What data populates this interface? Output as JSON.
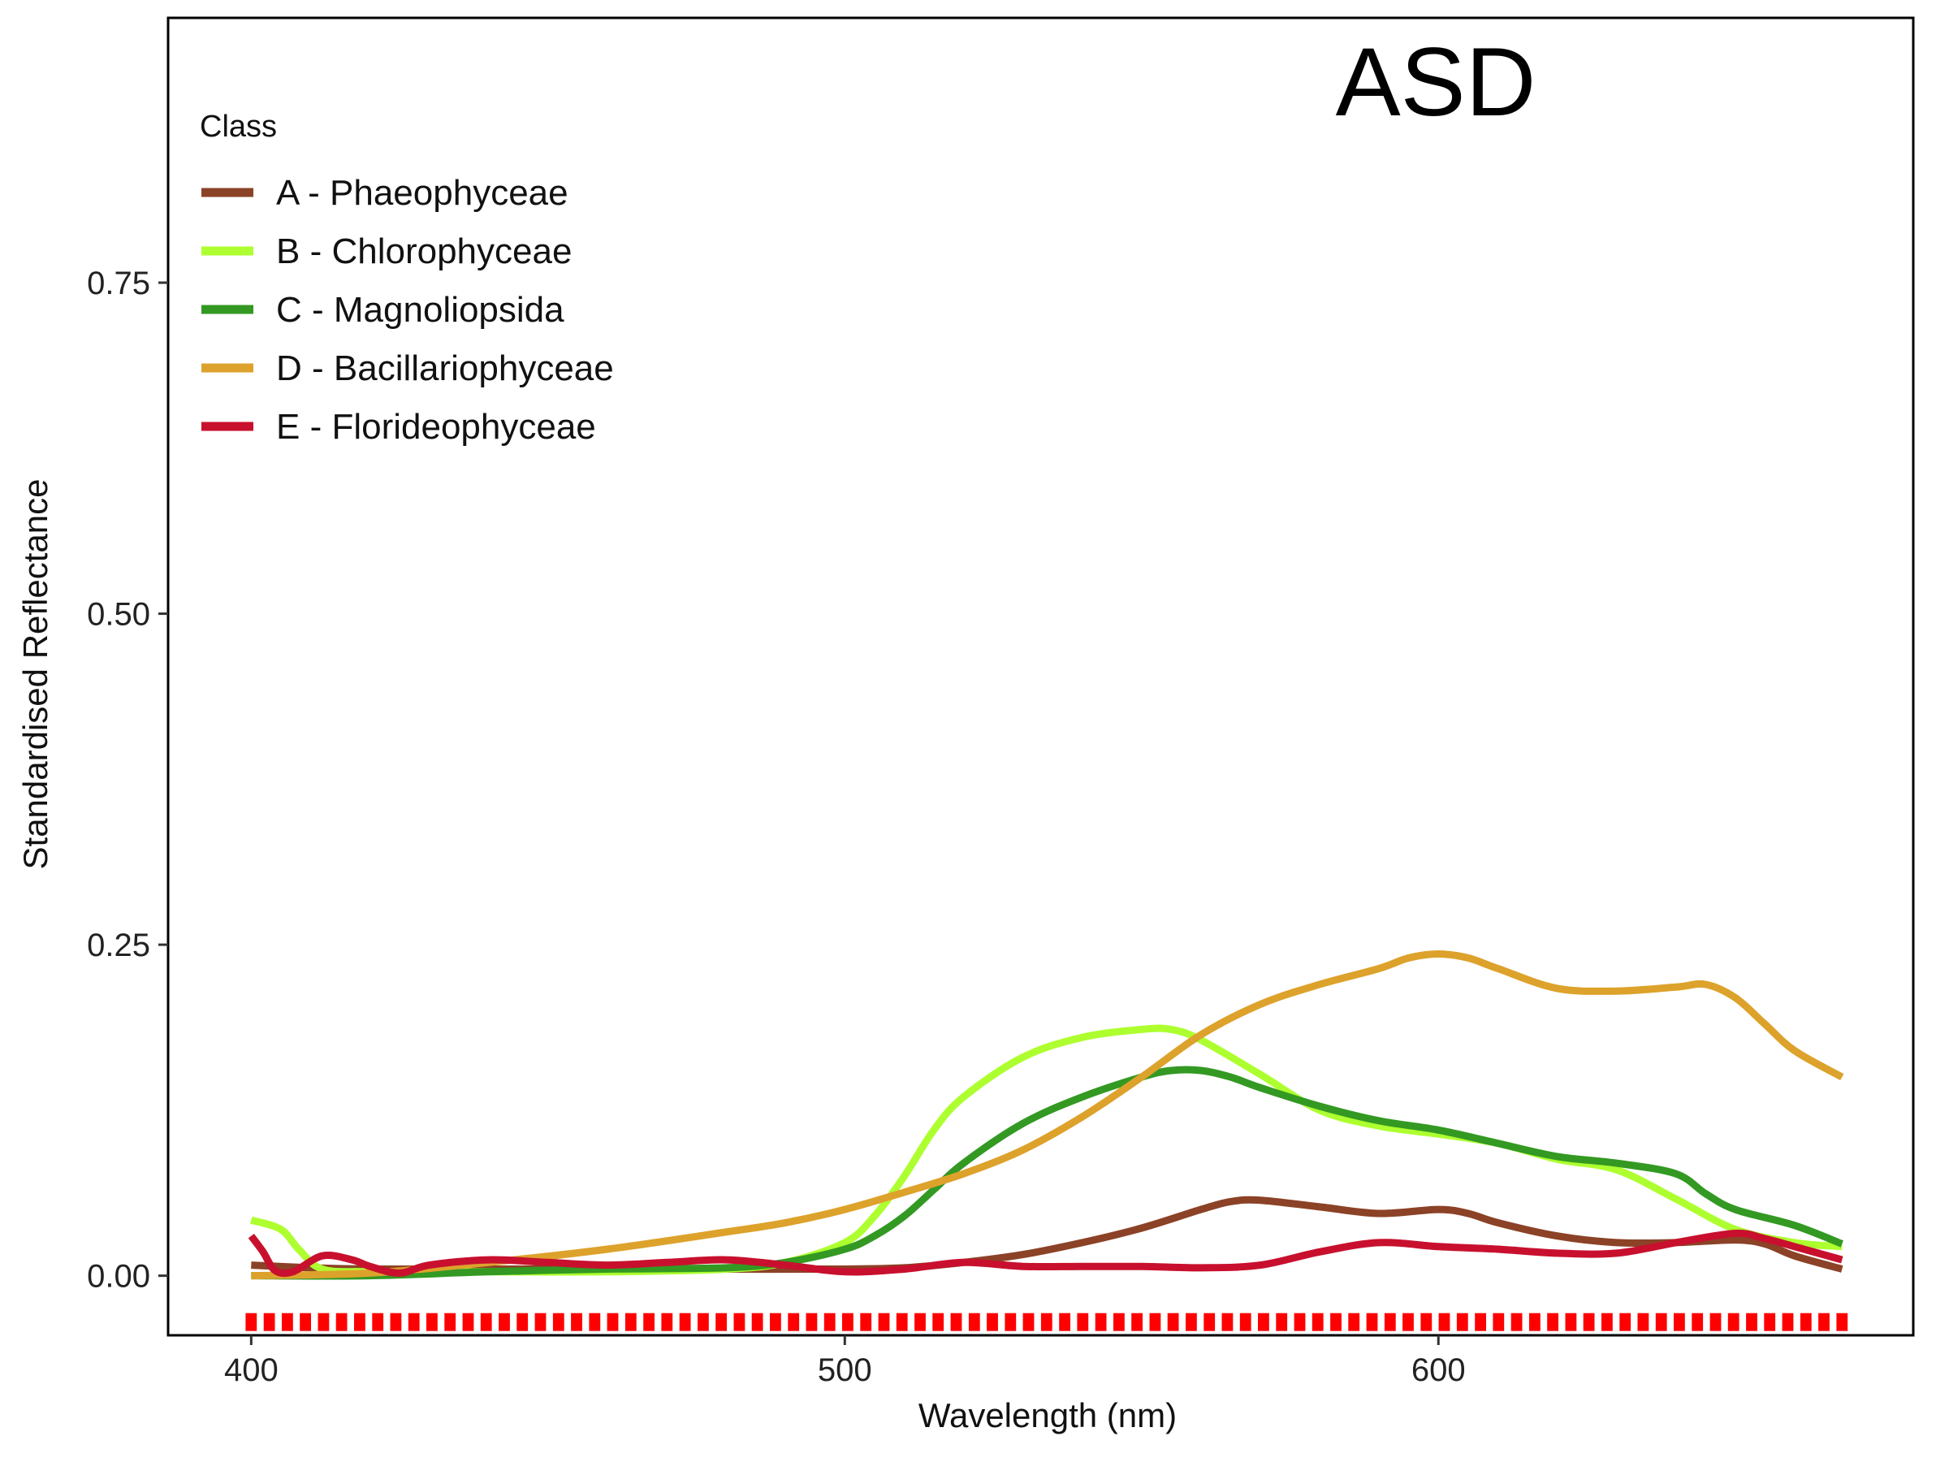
{
  "chart_data": {
    "type": "line",
    "annotation": "ASD",
    "xlabel": "Wavelength (nm)",
    "ylabel": "Standardised Reflectance",
    "xlim": [
      386,
      680
    ],
    "ylim": [
      -0.045,
      0.95
    ],
    "xticks": [
      {
        "value": 400,
        "label": "400"
      },
      {
        "value": 500,
        "label": "500"
      },
      {
        "value": 600,
        "label": "600"
      }
    ],
    "yticks": [
      {
        "value": 0,
        "label": "0.00"
      },
      {
        "value": 0.25,
        "label": "0.25"
      },
      {
        "value": 0.5,
        "label": "0.50"
      },
      {
        "value": 0.75,
        "label": "0.75"
      }
    ],
    "grid": false,
    "legend": {
      "title": "Class",
      "position": "top-left"
    },
    "marker_band": {
      "y": -0.035,
      "x_start": 400,
      "x_end": 668,
      "count": 89,
      "color": "#ff0000"
    },
    "series": [
      {
        "name": "A - Phaeophyceae",
        "color": "#8b4226",
        "x": [
          400,
          410,
          420,
          440,
          460,
          480,
          500,
          510,
          520,
          530,
          540,
          550,
          560,
          565,
          570,
          580,
          590,
          600,
          605,
          610,
          620,
          630,
          640,
          650,
          655,
          660,
          668
        ],
        "y": [
          0.008,
          0.006,
          0.005,
          0.005,
          0.005,
          0.005,
          0.005,
          0.006,
          0.01,
          0.016,
          0.025,
          0.036,
          0.05,
          0.056,
          0.057,
          0.052,
          0.047,
          0.05,
          0.047,
          0.04,
          0.03,
          0.025,
          0.025,
          0.027,
          0.024,
          0.015,
          0.005
        ]
      },
      {
        "name": "B - Chlorophyceae",
        "color": "#adff2f",
        "x": [
          400,
          405,
          408,
          412,
          420,
          440,
          460,
          480,
          490,
          500,
          505,
          510,
          515,
          520,
          530,
          540,
          550,
          555,
          560,
          570,
          580,
          590,
          600,
          610,
          620,
          630,
          640,
          650,
          660,
          668
        ],
        "y": [
          0.042,
          0.035,
          0.02,
          0.005,
          0.003,
          0.003,
          0.003,
          0.005,
          0.01,
          0.025,
          0.045,
          0.075,
          0.11,
          0.135,
          0.165,
          0.18,
          0.186,
          0.186,
          0.178,
          0.152,
          0.125,
          0.113,
          0.107,
          0.1,
          0.088,
          0.08,
          0.058,
          0.035,
          0.025,
          0.022
        ]
      },
      {
        "name": "C - Magnoliopsida",
        "color": "#339922",
        "x": [
          400,
          420,
          440,
          460,
          480,
          490,
          500,
          505,
          510,
          515,
          520,
          530,
          540,
          550,
          555,
          560,
          565,
          570,
          580,
          590,
          600,
          610,
          620,
          630,
          640,
          645,
          650,
          660,
          668
        ],
        "y": [
          0.0,
          0.0,
          0.003,
          0.005,
          0.006,
          0.01,
          0.02,
          0.03,
          0.045,
          0.065,
          0.085,
          0.115,
          0.135,
          0.15,
          0.155,
          0.155,
          0.15,
          0.142,
          0.128,
          0.117,
          0.11,
          0.1,
          0.09,
          0.085,
          0.077,
          0.062,
          0.05,
          0.038,
          0.024
        ]
      },
      {
        "name": "D - Bacillariophyceae",
        "color": "#dda22b",
        "x": [
          400,
          420,
          440,
          460,
          480,
          490,
          500,
          510,
          520,
          530,
          540,
          550,
          560,
          570,
          580,
          590,
          595,
          600,
          605,
          610,
          620,
          630,
          640,
          645,
          650,
          655,
          660,
          668
        ],
        "y": [
          0.0,
          0.002,
          0.01,
          0.02,
          0.033,
          0.04,
          0.05,
          0.063,
          0.077,
          0.095,
          0.12,
          0.15,
          0.182,
          0.205,
          0.22,
          0.232,
          0.24,
          0.243,
          0.24,
          0.232,
          0.217,
          0.215,
          0.218,
          0.22,
          0.21,
          0.19,
          0.17,
          0.15
        ]
      },
      {
        "name": "E - Florideophyceae",
        "color": "#c8102e",
        "x": [
          400,
          402,
          404,
          407,
          412,
          417,
          420,
          425,
          430,
          440,
          450,
          460,
          470,
          480,
          490,
          500,
          510,
          520,
          530,
          540,
          550,
          560,
          570,
          580,
          590,
          600,
          610,
          620,
          630,
          640,
          650,
          655,
          660,
          668
        ],
        "y": [
          0.03,
          0.018,
          0.004,
          0.003,
          0.015,
          0.012,
          0.007,
          0.002,
          0.008,
          0.012,
          0.01,
          0.008,
          0.01,
          0.012,
          0.008,
          0.003,
          0.005,
          0.01,
          0.007,
          0.007,
          0.007,
          0.006,
          0.008,
          0.018,
          0.025,
          0.022,
          0.02,
          0.017,
          0.017,
          0.025,
          0.032,
          0.028,
          0.022,
          0.012
        ]
      }
    ]
  }
}
